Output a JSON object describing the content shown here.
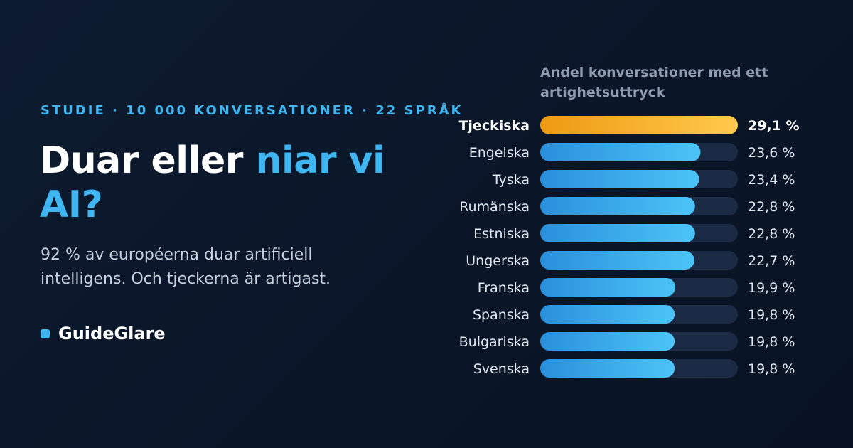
{
  "eyebrow": "STUDIE · 10 000 KONVERSATIONER · 22 SPRÅK",
  "headline": {
    "part1": "Duar eller ",
    "part2": "niar vi AI?"
  },
  "subtitle": "92 % av européerna duar artificiell intelligens. Och tjeckerna är artigast.",
  "brand": "GuideGlare",
  "colors": {
    "accent": "#3fb6f2",
    "highlight_start": "#ee9a12",
    "highlight_end": "#ffc94d",
    "bar_start": "#2a8fdc",
    "bar_end": "#4cc4f7",
    "track": "#1c2b45"
  },
  "chart_data": {
    "type": "bar",
    "orientation": "horizontal",
    "title": "Andel konversationer med ett artighetsuttryck",
    "categories": [
      "Tjeckiska",
      "Engelska",
      "Tyska",
      "Rumänska",
      "Estniska",
      "Ungerska",
      "Franska",
      "Spanska",
      "Bulgariska",
      "Svenska"
    ],
    "values": [
      29.1,
      23.6,
      23.4,
      22.8,
      22.8,
      22.7,
      19.9,
      19.8,
      19.8,
      19.8
    ],
    "value_labels": [
      "29,1 %",
      "23,6 %",
      "23,4 %",
      "22,8 %",
      "22,8 %",
      "22,7 %",
      "19,9 %",
      "19,8 %",
      "19,8 %",
      "19,8 %"
    ],
    "highlight_index": 0,
    "xlim": [
      0,
      29.1
    ]
  }
}
